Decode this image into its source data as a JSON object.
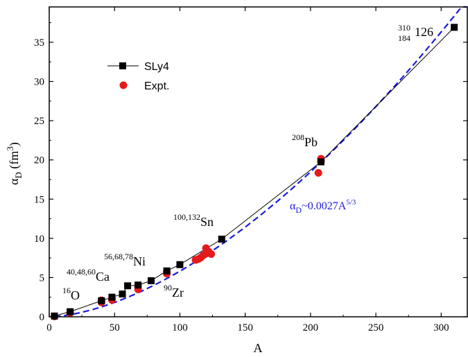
{
  "chart_data": {
    "type": "scatter",
    "xlabel": "A",
    "ylabel": {
      "main": "α",
      "sub": "D",
      "unit_open": " (fm",
      "unit_sup": "3",
      "unit_close": ")"
    },
    "xlim": [
      0,
      320
    ],
    "ylim": [
      0,
      39.5
    ],
    "xticks": [
      0,
      50,
      100,
      150,
      200,
      250,
      300
    ],
    "yticks": [
      0,
      5,
      10,
      15,
      20,
      25,
      30,
      35
    ],
    "grid": false,
    "legend_position": "upper-left",
    "series": [
      {
        "name": "SLy4",
        "style": "line+square",
        "color": "#000000",
        "x": [
          4,
          16,
          40,
          48,
          56,
          60,
          68,
          78,
          90,
          100,
          132,
          208,
          310
        ],
        "y": [
          0.1,
          0.65,
          2.05,
          2.5,
          2.9,
          3.95,
          4.05,
          4.6,
          5.85,
          6.65,
          9.9,
          19.75,
          36.9
        ]
      },
      {
        "name": "Expt.",
        "style": "circle",
        "color": "#e41a1c",
        "x": [
          4,
          16,
          40,
          40,
          48,
          48,
          68,
          68,
          90,
          90,
          112,
          114,
          116,
          118,
          120,
          120,
          122,
          124,
          206,
          208,
          208
        ],
        "y": [
          0.05,
          0.5,
          2.1,
          1.85,
          2.3,
          2.15,
          3.9,
          3.5,
          5.75,
          5.5,
          7.25,
          7.35,
          7.55,
          7.85,
          8.75,
          8.05,
          8.3,
          8.0,
          18.35,
          19.85,
          20.15
        ]
      },
      {
        "name": "fit",
        "style": "dashed-line",
        "color": "#1a1adc",
        "formula_coef": 0.0027,
        "formula_exp": 1.6667,
        "x_range": [
          4,
          320
        ]
      }
    ],
    "annotations": [
      {
        "sup": "16",
        "text": "O"
      },
      {
        "sup": "40,48,60",
        "text": "Ca"
      },
      {
        "sup": "56,68,78",
        "text": "Ni"
      },
      {
        "sup": "90",
        "text": "Zr"
      },
      {
        "sup": "100,132",
        "text": "Sn"
      },
      {
        "sup": "208",
        "text": "Pb"
      },
      {
        "sup": "310",
        "sub": "184",
        "text": "126"
      }
    ],
    "fit_label": {
      "main": "α",
      "sub": "D",
      "mid": "~0.0027A",
      "sup": "5/3"
    }
  }
}
